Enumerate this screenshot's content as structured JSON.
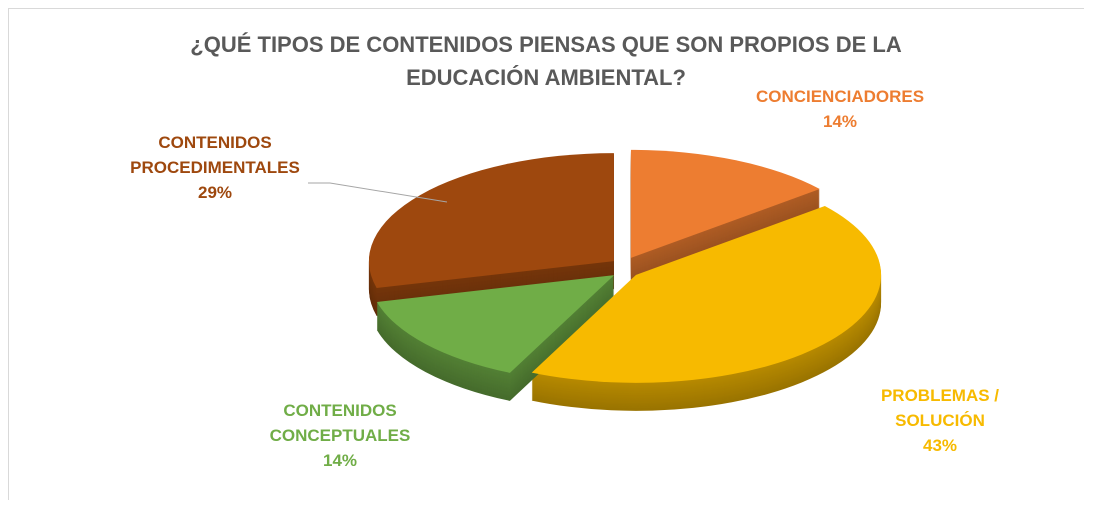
{
  "chart_data": {
    "type": "pie",
    "title": "¿QUÉ TIPOS DE CONTENIDOS PIENSAS QUE SON PROPIOS DE LA EDUCACIÓN AMBIENTAL?",
    "categories": [
      "CONCIENCIADORES",
      "PROBLEMAS / SOLUCIÓN",
      "CONTENIDOS CONCEPTUALES",
      "CONTENIDOS PROCEDIMENTALES"
    ],
    "values": [
      14,
      43,
      14,
      29
    ],
    "value_labels": [
      "14%",
      "43%",
      "14%",
      "29%"
    ],
    "colors": [
      "#ED7D31",
      "#F7BA00",
      "#70AD47",
      "#9E480E"
    ],
    "exploded": true,
    "three_d": true
  }
}
